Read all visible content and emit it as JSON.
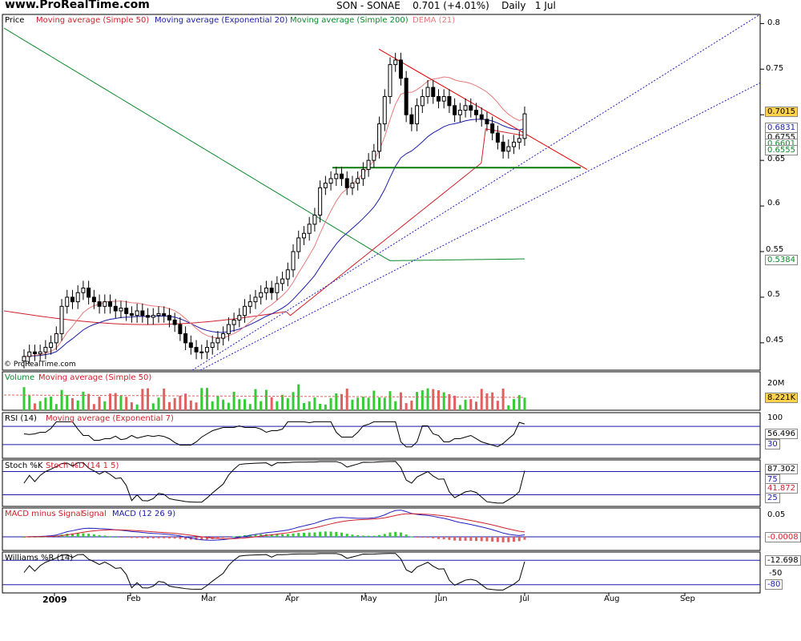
{
  "header": {
    "site": "www.ProRealTime.com",
    "symbol": "SON - SONAE",
    "price": "0.701 (+4.01%)",
    "period": "Daily",
    "date": "1 Jul"
  },
  "watermark": "© ProRealTime.com",
  "colors": {
    "candle_up": "#ffffff",
    "candle_down": "#000000",
    "sma50": "#d0202a",
    "ema20": "#1a1aa8",
    "sma200": "#0b8a2c",
    "dema21": "#e87a7a",
    "volume_up": "#33cc33",
    "volume_down": "#e06060",
    "support": "#0b7a0b",
    "resistance": "#e00000",
    "trend": "#2020c0"
  },
  "chart_data": [
    {
      "type": "candlestick",
      "panel": "price",
      "legend": [
        {
          "label": "Price"
        },
        {
          "label": "Moving average (Simple 50)"
        },
        {
          "label": "Moving average (Exponential 20)"
        },
        {
          "label": "Moving average (Simple 200)"
        },
        {
          "label": "DEMA (21)"
        }
      ],
      "ylim": [
        0.42,
        0.81
      ],
      "yticks": [
        "0.8",
        "0.75",
        "0.7",
        "0.65",
        "0.6",
        "0.55",
        "0.5",
        "0.45"
      ],
      "tags": [
        {
          "text": "0.7015",
          "color": "#000000",
          "bg": "#ffd24d"
        },
        {
          "text": "0.6831",
          "color": "#1a1aa8",
          "bg": "#ffffff"
        },
        {
          "text": "0.6755",
          "color": "#000000",
          "bg": "#ffffff"
        },
        {
          "text": "0.6601",
          "color": "#0b8a2c",
          "bg": "#ffffff"
        },
        {
          "text": "0.6555",
          "color": "#0b8a2c",
          "bg": "#ffffff"
        },
        {
          "text": "0.5384",
          "color": "#0b8a2c",
          "bg": "#ffffff"
        }
      ],
      "close": [
        0.435,
        0.44,
        0.438,
        0.44,
        0.445,
        0.45,
        0.46,
        0.49,
        0.5,
        0.495,
        0.505,
        0.51,
        0.5,
        0.495,
        0.49,
        0.495,
        0.49,
        0.485,
        0.488,
        0.482,
        0.48,
        0.485,
        0.48,
        0.478,
        0.48,
        0.482,
        0.48,
        0.475,
        0.47,
        0.46,
        0.45,
        0.445,
        0.44,
        0.44,
        0.445,
        0.45,
        0.455,
        0.46,
        0.47,
        0.475,
        0.48,
        0.49,
        0.495,
        0.5,
        0.505,
        0.51,
        0.505,
        0.515,
        0.52,
        0.53,
        0.55,
        0.565,
        0.57,
        0.58,
        0.59,
        0.62,
        0.625,
        0.63,
        0.635,
        0.63,
        0.62,
        0.625,
        0.63,
        0.64,
        0.65,
        0.66,
        0.69,
        0.72,
        0.755,
        0.76,
        0.74,
        0.7,
        0.69,
        0.71,
        0.72,
        0.73,
        0.72,
        0.715,
        0.72,
        0.71,
        0.7,
        0.705,
        0.71,
        0.705,
        0.7,
        0.695,
        0.69,
        0.68,
        0.67,
        0.66,
        0.665,
        0.67,
        0.674,
        0.701
      ],
      "sma50_end": 0.6755,
      "ema20_end": 0.6831,
      "sma200_end": 0.5384
    },
    {
      "type": "bar",
      "panel": "volume",
      "legend": [
        {
          "label": "Volume"
        },
        {
          "label": "Moving average (Simple 50)"
        }
      ],
      "yticks": [
        "20M"
      ],
      "tag": "8.221K"
    },
    {
      "type": "line",
      "panel": "rsi",
      "legend": [
        {
          "label": "RSI (14)"
        },
        {
          "label": "Moving average (Exponential 7)"
        }
      ],
      "ylim": [
        0,
        100
      ],
      "levels": [
        70,
        30
      ],
      "yticks": [
        "100",
        "70",
        "30"
      ],
      "tag": "56.496"
    },
    {
      "type": "line",
      "panel": "stochastic",
      "legend": [
        {
          "label": "Stoch %K"
        },
        {
          "label": "Stoch %D (14 1 5)"
        }
      ],
      "levels": [
        75,
        25
      ],
      "yticks": [
        "75",
        "25"
      ],
      "tags": [
        "87.302",
        "41.872"
      ]
    },
    {
      "type": "bar",
      "panel": "macd",
      "legend": [
        {
          "label": "MACD minus Signal"
        },
        {
          "label": "Signal"
        },
        {
          "label": "MACD (12 26 9)"
        }
      ],
      "yticks": [
        "0.05"
      ],
      "tag": "-0.0008"
    },
    {
      "type": "line",
      "panel": "williams",
      "legend": [
        {
          "label": "Williams %R (14)"
        }
      ],
      "levels": [
        -20,
        -50,
        -80
      ],
      "yticks": [
        "-50",
        "-80"
      ],
      "tag": "-12.698"
    }
  ],
  "x_axis": {
    "year": "2009",
    "months": [
      "Feb",
      "Mar",
      "Apr",
      "May",
      "Jun",
      "Jul",
      "Aug",
      "Sep"
    ]
  }
}
